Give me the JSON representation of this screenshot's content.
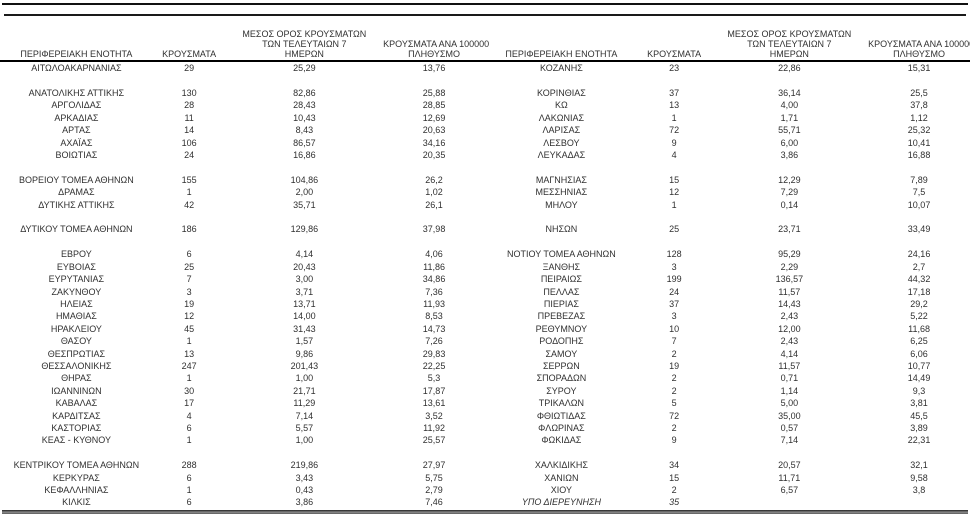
{
  "columns": {
    "region": "ΠΕΡΙΦΕΡΕΙΑΚΗ ΕΝΟΤΗΤΑ",
    "cases": "ΚΡΟΥΣΜΑΤΑ",
    "avg7": "ΜΕΣΟΣ ΟΡΟΣ ΚΡΟΥΣΜΑΤΩΝ\nΤΩΝ ΤΕΛΕΥΤΑΙΩΝ 7\nΗΜΕΡΩΝ",
    "per100k": "ΚΡΟΥΣΜΑΤΑ ΑΝΑ 100000\nΠΛΗΘΥΣΜΟ"
  },
  "tables": {
    "left": [
      {
        "region": "ΑΙΤΩΛΟΑΚΑΡΝΑΝΙΑΣ",
        "cases": "29",
        "avg7": "25,29",
        "per100k": "13,76"
      },
      {
        "spacer": true
      },
      {
        "region": "ΑΝΑΤΟΛΙΚΗΣ ΑΤΤΙΚΗΣ",
        "cases": "130",
        "avg7": "82,86",
        "per100k": "25,88"
      },
      {
        "region": "ΑΡΓΟΛΙΔΑΣ",
        "cases": "28",
        "avg7": "28,43",
        "per100k": "28,85"
      },
      {
        "region": "ΑΡΚΑΔΙΑΣ",
        "cases": "11",
        "avg7": "10,43",
        "per100k": "12,69"
      },
      {
        "region": "ΑΡΤΑΣ",
        "cases": "14",
        "avg7": "8,43",
        "per100k": "20,63"
      },
      {
        "region": "ΑΧΑΪΑΣ",
        "cases": "106",
        "avg7": "86,57",
        "per100k": "34,16"
      },
      {
        "region": "ΒΟΙΩΤΙΑΣ",
        "cases": "24",
        "avg7": "16,86",
        "per100k": "20,35"
      },
      {
        "spacer": true
      },
      {
        "region": "ΒΟΡΕΙΟΥ ΤΟΜΕΑ ΑΘΗΝΩΝ",
        "cases": "155",
        "avg7": "104,86",
        "per100k": "26,2"
      },
      {
        "region": "ΔΡΑΜΑΣ",
        "cases": "1",
        "avg7": "2,00",
        "per100k": "1,02"
      },
      {
        "region": "ΔΥΤΙΚΗΣ ΑΤΤΙΚΗΣ",
        "cases": "42",
        "avg7": "35,71",
        "per100k": "26,1"
      },
      {
        "spacer": true
      },
      {
        "region": "ΔΥΤΙΚΟΥ ΤΟΜΕΑ ΑΘΗΝΩΝ",
        "cases": "186",
        "avg7": "129,86",
        "per100k": "37,98"
      },
      {
        "spacer": true
      },
      {
        "region": "ΕΒΡΟΥ",
        "cases": "6",
        "avg7": "4,14",
        "per100k": "4,06"
      },
      {
        "region": "ΕΥΒΟΙΑΣ",
        "cases": "25",
        "avg7": "20,43",
        "per100k": "11,86"
      },
      {
        "region": "ΕΥΡΥΤΑΝΙΑΣ",
        "cases": "7",
        "avg7": "3,00",
        "per100k": "34,86"
      },
      {
        "region": "ΖΑΚΥΝΘΟΥ",
        "cases": "3",
        "avg7": "3,71",
        "per100k": "7,36"
      },
      {
        "region": "ΗΛΕΙΑΣ",
        "cases": "19",
        "avg7": "13,71",
        "per100k": "11,93"
      },
      {
        "region": "ΗΜΑΘΙΑΣ",
        "cases": "12",
        "avg7": "14,00",
        "per100k": "8,53"
      },
      {
        "region": "ΗΡΑΚΛΕΙΟΥ",
        "cases": "45",
        "avg7": "31,43",
        "per100k": "14,73"
      },
      {
        "region": "ΘΑΣΟΥ",
        "cases": "1",
        "avg7": "1,57",
        "per100k": "7,26"
      },
      {
        "region": "ΘΕΣΠΡΩΤΙΑΣ",
        "cases": "13",
        "avg7": "9,86",
        "per100k": "29,83"
      },
      {
        "region": "ΘΕΣΣΑΛΟΝΙΚΗΣ",
        "cases": "247",
        "avg7": "201,43",
        "per100k": "22,25"
      },
      {
        "region": "ΘΗΡΑΣ",
        "cases": "1",
        "avg7": "1,00",
        "per100k": "5,3"
      },
      {
        "region": "ΙΩΑΝΝΙΝΩΝ",
        "cases": "30",
        "avg7": "21,71",
        "per100k": "17,87"
      },
      {
        "region": "ΚΑΒΑΛΑΣ",
        "cases": "17",
        "avg7": "11,29",
        "per100k": "13,61"
      },
      {
        "region": "ΚΑΡΔΙΤΣΑΣ",
        "cases": "4",
        "avg7": "7,14",
        "per100k": "3,52"
      },
      {
        "region": "ΚΑΣΤΟΡΙΑΣ",
        "cases": "6",
        "avg7": "5,57",
        "per100k": "11,92"
      },
      {
        "region": "ΚΕΑΣ - ΚΥΘΝΟΥ",
        "cases": "1",
        "avg7": "1,00",
        "per100k": "25,57"
      },
      {
        "spacer": true
      },
      {
        "region": "ΚΕΝΤΡΙΚΟΥ ΤΟΜΕΑ ΑΘΗΝΩΝ",
        "cases": "288",
        "avg7": "219,86",
        "per100k": "27,97"
      },
      {
        "region": "ΚΕΡΚΥΡΑΣ",
        "cases": "6",
        "avg7": "3,43",
        "per100k": "5,75"
      },
      {
        "region": "ΚΕΦΑΛΛΗΝΙΑΣ",
        "cases": "1",
        "avg7": "0,43",
        "per100k": "2,79"
      },
      {
        "region": "ΚΙΛΚΙΣ",
        "cases": "6",
        "avg7": "3,86",
        "per100k": "7,46"
      }
    ],
    "right": [
      {
        "region": "ΚΟΖΑΝΗΣ",
        "cases": "23",
        "avg7": "22,86",
        "per100k": "15,31"
      },
      {
        "spacer": true
      },
      {
        "region": "ΚΟΡΙΝΘΙΑΣ",
        "cases": "37",
        "avg7": "36,14",
        "per100k": "25,5"
      },
      {
        "region": "ΚΩ",
        "cases": "13",
        "avg7": "4,00",
        "per100k": "37,8"
      },
      {
        "region": "ΛΑΚΩΝΙΑΣ",
        "cases": "1",
        "avg7": "1,71",
        "per100k": "1,12"
      },
      {
        "region": "ΛΑΡΙΣΑΣ",
        "cases": "72",
        "avg7": "55,71",
        "per100k": "25,32"
      },
      {
        "region": "ΛΕΣΒΟΥ",
        "cases": "9",
        "avg7": "6,00",
        "per100k": "10,41"
      },
      {
        "region": "ΛΕΥΚΑΔΑΣ",
        "cases": "4",
        "avg7": "3,86",
        "per100k": "16,88"
      },
      {
        "spacer": true
      },
      {
        "region": "ΜΑΓΝΗΣΙΑΣ",
        "cases": "15",
        "avg7": "12,29",
        "per100k": "7,89"
      },
      {
        "region": "ΜΕΣΣΗΝΙΑΣ",
        "cases": "12",
        "avg7": "7,29",
        "per100k": "7,5"
      },
      {
        "region": "ΜΗΛΟΥ",
        "cases": "1",
        "avg7": "0,14",
        "per100k": "10,07"
      },
      {
        "spacer": true
      },
      {
        "region": "ΝΗΣΩΝ",
        "cases": "25",
        "avg7": "23,71",
        "per100k": "33,49"
      },
      {
        "spacer": true
      },
      {
        "region": "ΝΟΤΙΟΥ ΤΟΜΕΑ ΑΘΗΝΩΝ",
        "cases": "128",
        "avg7": "95,29",
        "per100k": "24,16"
      },
      {
        "region": "ΞΑΝΘΗΣ",
        "cases": "3",
        "avg7": "2,29",
        "per100k": "2,7"
      },
      {
        "region": "ΠΕΙΡΑΙΩΣ",
        "cases": "199",
        "avg7": "136,57",
        "per100k": "44,32"
      },
      {
        "region": "ΠΕΛΛΑΣ",
        "cases": "24",
        "avg7": "11,57",
        "per100k": "17,18"
      },
      {
        "region": "ΠΙΕΡΙΑΣ",
        "cases": "37",
        "avg7": "14,43",
        "per100k": "29,2"
      },
      {
        "region": "ΠΡΕΒΕΖΑΣ",
        "cases": "3",
        "avg7": "2,43",
        "per100k": "5,22"
      },
      {
        "region": "ΡΕΘΥΜΝΟΥ",
        "cases": "10",
        "avg7": "12,00",
        "per100k": "11,68"
      },
      {
        "region": "ΡΟΔΟΠΗΣ",
        "cases": "7",
        "avg7": "2,43",
        "per100k": "6,25"
      },
      {
        "region": "ΣΑΜΟΥ",
        "cases": "2",
        "avg7": "4,14",
        "per100k": "6,06"
      },
      {
        "region": "ΣΕΡΡΩΝ",
        "cases": "19",
        "avg7": "11,57",
        "per100k": "10,77"
      },
      {
        "region": "ΣΠΟΡΑΔΩΝ",
        "cases": "2",
        "avg7": "0,71",
        "per100k": "14,49"
      },
      {
        "region": "ΣΥΡΟΥ",
        "cases": "2",
        "avg7": "1,14",
        "per100k": "9,3"
      },
      {
        "region": "ΤΡΙΚΑΛΩΝ",
        "cases": "5",
        "avg7": "5,00",
        "per100k": "3,81"
      },
      {
        "region": "ΦΘΙΩΤΙΔΑΣ",
        "cases": "72",
        "avg7": "35,00",
        "per100k": "45,5"
      },
      {
        "region": "ΦΛΩΡΙΝΑΣ",
        "cases": "2",
        "avg7": "0,57",
        "per100k": "3,89"
      },
      {
        "region": "ΦΩΚΙΔΑΣ",
        "cases": "9",
        "avg7": "7,14",
        "per100k": "22,31"
      },
      {
        "spacer": true
      },
      {
        "region": "ΧΑΛΚΙΔΙΚΗΣ",
        "cases": "34",
        "avg7": "20,57",
        "per100k": "32,1"
      },
      {
        "region": "ΧΑΝΙΩΝ",
        "cases": "15",
        "avg7": "11,71",
        "per100k": "9,58"
      },
      {
        "region": "ΧΙΟΥ",
        "cases": "2",
        "avg7": "6,57",
        "per100k": "3,8"
      },
      {
        "region": "ΥΠΟ ΔΙΕΡΕΥΝΗΣΗ",
        "cases": "35",
        "avg7": "",
        "per100k": "",
        "italic": true
      }
    ]
  }
}
